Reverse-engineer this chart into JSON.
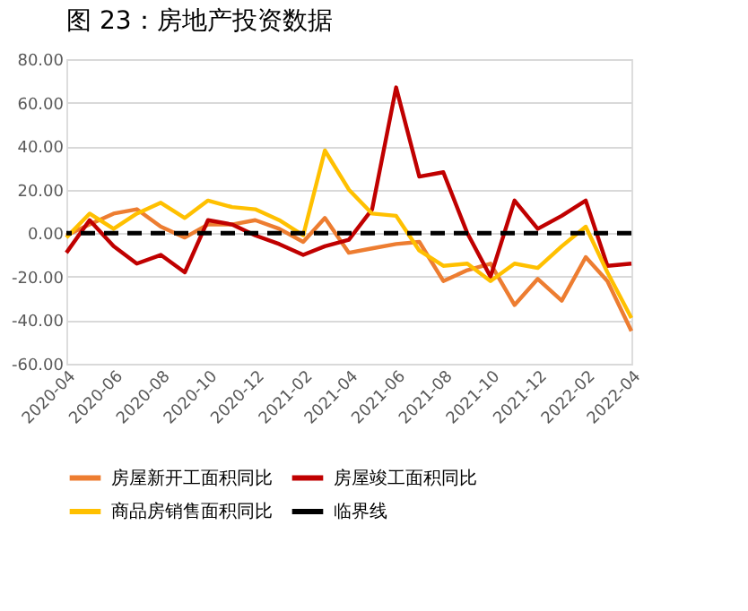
{
  "chart_data": {
    "type": "line",
    "title": "图 23：房地产投资数据",
    "x": [
      "2020-04",
      "2020-05",
      "2020-06",
      "2020-07",
      "2020-08",
      "2020-09",
      "2020-10",
      "2020-11",
      "2020-12",
      "2021-01",
      "2021-02",
      "2021-03",
      "2021-04",
      "2021-05",
      "2021-06",
      "2021-07",
      "2021-08",
      "2021-09",
      "2021-10",
      "2021-11",
      "2021-12",
      "2022-01",
      "2022-02",
      "2022-03",
      "2022-04"
    ],
    "series": [
      {
        "name": "房屋新开工面积同比",
        "color": "#ed7d31",
        "values": [
          -1,
          4,
          9,
          11,
          3,
          -2,
          4,
          4,
          6,
          2,
          -4,
          7,
          -9,
          -7,
          -5,
          -4,
          -22,
          -17,
          -14,
          -33,
          -21,
          -31,
          -11,
          -22,
          -45
        ]
      },
      {
        "name": "房屋竣工面积同比",
        "color": "#c00000",
        "values": [
          -9,
          6,
          -6,
          -14,
          -10,
          -18,
          6,
          4,
          -1,
          -5,
          -10,
          -6,
          -3,
          11,
          67,
          26,
          28,
          0,
          -20,
          15,
          2,
          8,
          15,
          -15,
          -14
        ]
      },
      {
        "name": "商品房销售面积同比",
        "color": "#ffc000",
        "values": [
          -2,
          9,
          2,
          9,
          14,
          7,
          15,
          12,
          11,
          6,
          -1,
          38,
          20,
          9,
          8,
          -8,
          -15,
          -14,
          -22,
          -14,
          -16,
          -6,
          3,
          -18,
          -39
        ]
      }
    ],
    "ref_lines": [
      {
        "axis": "y",
        "value": 0,
        "label": "临界线",
        "color": "#000000",
        "line_style": "dashed"
      }
    ],
    "xlim": [
      "2020-04",
      "2022-04"
    ],
    "xticks": [
      "2020-04",
      "2020-06",
      "2020-08",
      "2020-10",
      "2020-12",
      "2021-02",
      "2021-04",
      "2021-06",
      "2021-08",
      "2021-10",
      "2021-12",
      "2022-02",
      "2022-04"
    ],
    "ylim": [
      -60,
      80
    ],
    "yticks": [
      {
        "value": -60,
        "label": "-60.00"
      },
      {
        "value": -40,
        "label": "-40.00"
      },
      {
        "value": -20,
        "label": "-20.00"
      },
      {
        "value": 0,
        "label": "0.00"
      },
      {
        "value": 20,
        "label": "20.00"
      },
      {
        "value": 40,
        "label": "40.00"
      },
      {
        "value": 60,
        "label": "60.00"
      },
      {
        "value": 80,
        "label": "80.00"
      }
    ],
    "grid": "y",
    "legend": "bottom",
    "marker": "none",
    "line_style": "solid"
  }
}
